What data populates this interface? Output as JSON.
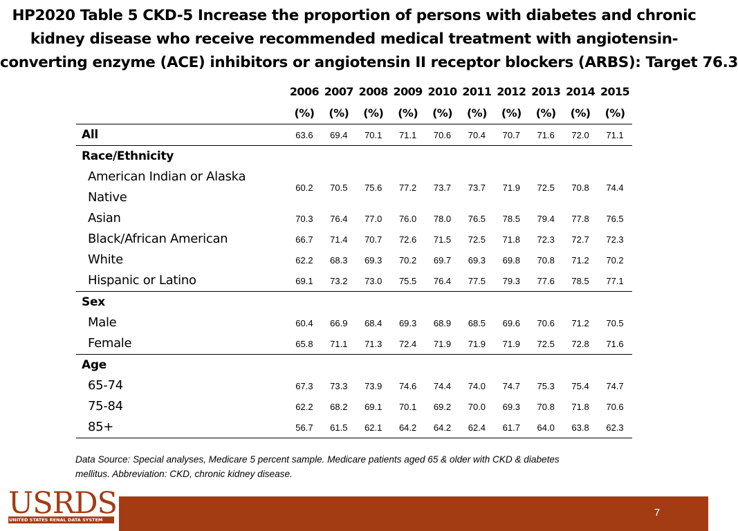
{
  "title": {
    "line1": "HP2020 Table 5 CKD-5 Increase the proportion of persons with diabetes and chronic",
    "line2": "kidney disease who receive recommended medical treatment with angiotensin-",
    "line3": "converting enzyme (ACE) inhibitors or angiotensin II receptor blockers (ARBS): Target 76.3"
  },
  "table": {
    "years": [
      "2006",
      "2007",
      "2008",
      "2009",
      "2010",
      "2011",
      "2012",
      "2013",
      "2014",
      "2015"
    ],
    "unit": "(%)",
    "rows": [
      {
        "label": "All",
        "values": [
          "63.6",
          "69.4",
          "70.1",
          "71.1",
          "70.6",
          "70.4",
          "70.7",
          "71.6",
          "72.0",
          "71.1"
        ]
      },
      {
        "label": "Race/Ethnicity"
      },
      {
        "label": "American Indian or Alaska Native",
        "values": [
          "60.2",
          "70.5",
          "75.6",
          "77.2",
          "73.7",
          "73.7",
          "71.9",
          "72.5",
          "70.8",
          "74.4"
        ]
      },
      {
        "label": "Asian",
        "values": [
          "70.3",
          "76.4",
          "77.0",
          "76.0",
          "78.0",
          "76.5",
          "78.5",
          "79.4",
          "77.8",
          "76.5"
        ]
      },
      {
        "label": "Black/African American",
        "values": [
          "66.7",
          "71.4",
          "70.7",
          "72.6",
          "71.5",
          "72.5",
          "71.8",
          "72.3",
          "72.7",
          "72.3"
        ]
      },
      {
        "label": "White",
        "values": [
          "62.2",
          "68.3",
          "69.3",
          "70.2",
          "69.7",
          "69.3",
          "69.8",
          "70.8",
          "71.2",
          "70.2"
        ]
      },
      {
        "label": "Hispanic or Latino",
        "values": [
          "69.1",
          "73.2",
          "73.0",
          "75.5",
          "76.4",
          "77.5",
          "79.3",
          "77.6",
          "78.5",
          "77.1"
        ]
      },
      {
        "label": "Sex"
      },
      {
        "label": "Male",
        "values": [
          "60.4",
          "66.9",
          "68.4",
          "69.3",
          "68.9",
          "68.5",
          "69.6",
          "70.6",
          "71.2",
          "70.5"
        ]
      },
      {
        "label": "Female",
        "values": [
          "65.8",
          "71.1",
          "71.3",
          "72.4",
          "71.9",
          "71.9",
          "71.9",
          "72.5",
          "72.8",
          "71.6"
        ]
      },
      {
        "label": "Age"
      },
      {
        "label": "65-74",
        "values": [
          "67.3",
          "73.3",
          "73.9",
          "74.6",
          "74.4",
          "74.0",
          "74.7",
          "75.3",
          "75.4",
          "74.7"
        ]
      },
      {
        "label": "75-84",
        "values": [
          "62.2",
          "68.2",
          "69.1",
          "70.1",
          "69.2",
          "70.0",
          "69.3",
          "70.8",
          "71.8",
          "70.6"
        ]
      },
      {
        "label": "85+",
        "values": [
          "56.7",
          "61.5",
          "62.1",
          "64.2",
          "64.2",
          "62.4",
          "61.7",
          "64.0",
          "63.8",
          "62.3"
        ]
      }
    ]
  },
  "source": {
    "line1": "Data Source: Special analyses, Medicare 5 percent sample. Medicare patients aged 65 & older with CKD & diabetes",
    "line2": "mellitus. Abbreviation: CKD, chronic kidney disease."
  },
  "footer": {
    "logo": "USRDS",
    "logo_subtitle": "UNITED STATES RENAL DATA SYSTEM",
    "page_number": "7",
    "bar_color": "#a33b13"
  }
}
